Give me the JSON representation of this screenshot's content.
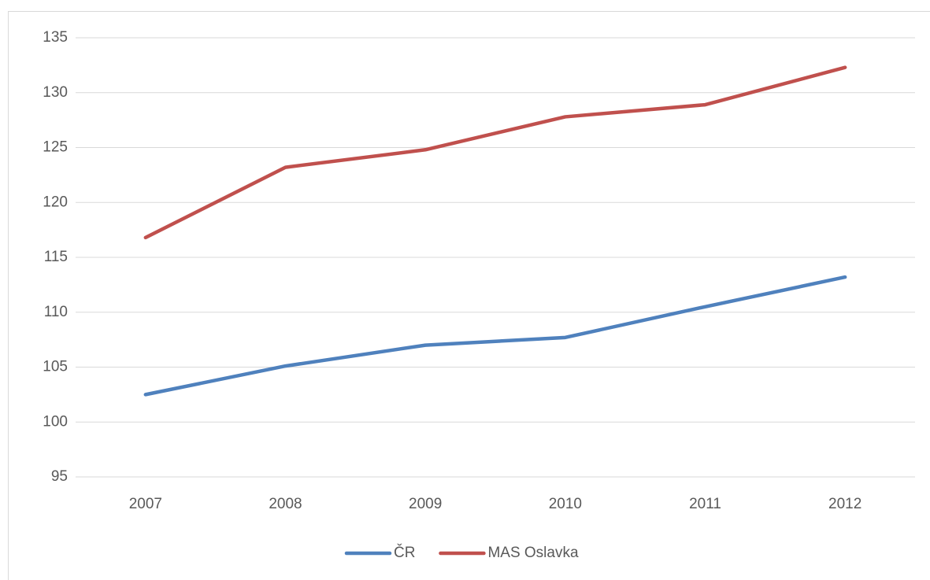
{
  "chart_data": {
    "type": "line",
    "categories": [
      "2007",
      "2008",
      "2009",
      "2010",
      "2011",
      "2012"
    ],
    "series": [
      {
        "name": "ČR",
        "color": "#4f81bd",
        "values": [
          102.5,
          105.1,
          107.0,
          107.7,
          110.5,
          113.2
        ]
      },
      {
        "name": "MAS Oslavka",
        "color": "#c0504d",
        "values": [
          116.8,
          123.2,
          124.8,
          127.8,
          128.9,
          132.3
        ]
      }
    ],
    "ylim": [
      95,
      135
    ],
    "yticks": [
      95,
      100,
      105,
      110,
      115,
      120,
      125,
      130,
      135
    ],
    "grid": true,
    "legend": "bottom"
  }
}
